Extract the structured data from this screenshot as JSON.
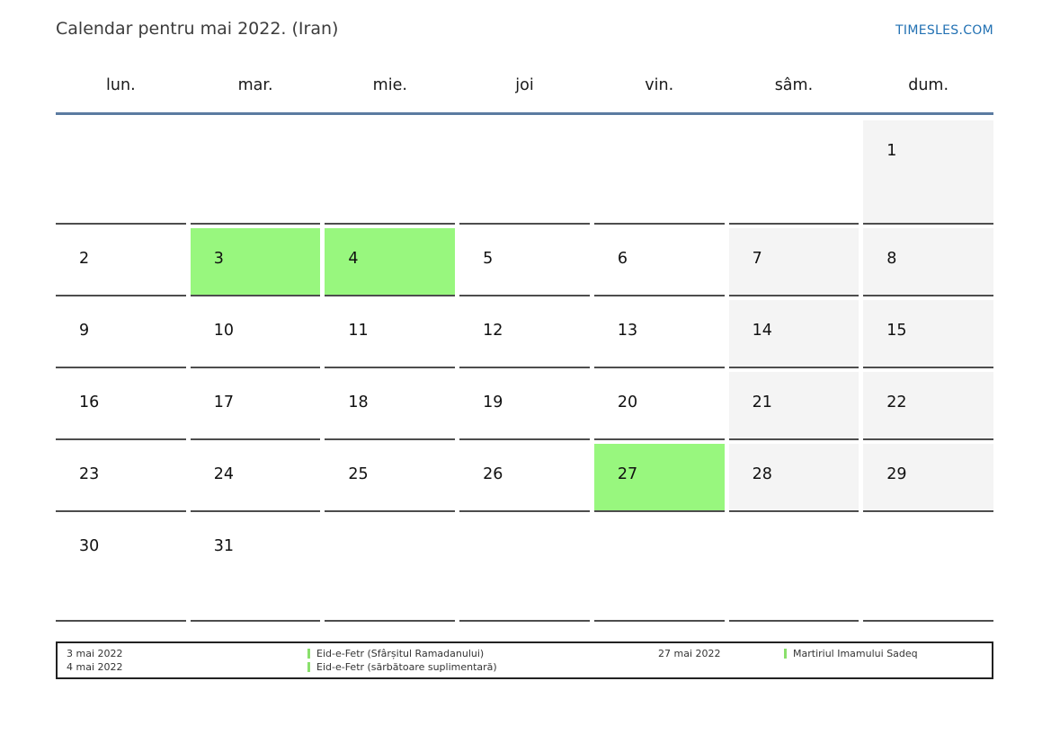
{
  "header": {
    "title": "Calendar pentru mai 2022. (Iran)",
    "site_link": "TIMESLES.COM"
  },
  "weekdays": [
    "lun.",
    "mar.",
    "mie.",
    "joi",
    "vin.",
    "sâm.",
    "dum."
  ],
  "calendar": {
    "month": "mai 2022",
    "cells": [
      {
        "day": "",
        "type": "blank"
      },
      {
        "day": "",
        "type": "blank"
      },
      {
        "day": "",
        "type": "blank"
      },
      {
        "day": "",
        "type": "blank"
      },
      {
        "day": "",
        "type": "blank"
      },
      {
        "day": "",
        "type": "blank"
      },
      {
        "day": "1",
        "type": "weekend"
      },
      {
        "day": "2",
        "type": "normal"
      },
      {
        "day": "3",
        "type": "holiday"
      },
      {
        "day": "4",
        "type": "holiday"
      },
      {
        "day": "5",
        "type": "normal"
      },
      {
        "day": "6",
        "type": "normal"
      },
      {
        "day": "7",
        "type": "weekend"
      },
      {
        "day": "8",
        "type": "weekend"
      },
      {
        "day": "9",
        "type": "normal"
      },
      {
        "day": "10",
        "type": "normal"
      },
      {
        "day": "11",
        "type": "normal"
      },
      {
        "day": "12",
        "type": "normal"
      },
      {
        "day": "13",
        "type": "normal"
      },
      {
        "day": "14",
        "type": "weekend"
      },
      {
        "day": "15",
        "type": "weekend"
      },
      {
        "day": "16",
        "type": "normal"
      },
      {
        "day": "17",
        "type": "normal"
      },
      {
        "day": "18",
        "type": "normal"
      },
      {
        "day": "19",
        "type": "normal"
      },
      {
        "day": "20",
        "type": "normal"
      },
      {
        "day": "21",
        "type": "weekend"
      },
      {
        "day": "22",
        "type": "weekend"
      },
      {
        "day": "23",
        "type": "normal"
      },
      {
        "day": "24",
        "type": "normal"
      },
      {
        "day": "25",
        "type": "normal"
      },
      {
        "day": "26",
        "type": "normal"
      },
      {
        "day": "27",
        "type": "holiday"
      },
      {
        "day": "28",
        "type": "weekend"
      },
      {
        "day": "29",
        "type": "weekend"
      },
      {
        "day": "30",
        "type": "normal"
      },
      {
        "day": "31",
        "type": "normal"
      },
      {
        "day": "",
        "type": "blank"
      },
      {
        "day": "",
        "type": "blank"
      },
      {
        "day": "",
        "type": "blank"
      },
      {
        "day": "",
        "type": "blank"
      },
      {
        "day": "",
        "type": "blank"
      }
    ]
  },
  "legend": {
    "left_dates": [
      "3 mai 2022",
      "4 mai 2022"
    ],
    "left_events": [
      "Eid-e-Fetr (Sfârșitul Ramadanului)",
      "Eid-e-Fetr (sărbătoare suplimentară)"
    ],
    "right_date": "27 mai 2022",
    "right_event": "Martiriul Imamului Sadeq"
  },
  "colors": {
    "holiday_green": "#98f77e",
    "weekend_gray": "#f4f4f4",
    "header_rule_blue": "#5b7ba1",
    "cell_border_gray": "#4d4d4d",
    "link_blue": "#2271b3",
    "legend_marker_green": "#8ae06c"
  }
}
